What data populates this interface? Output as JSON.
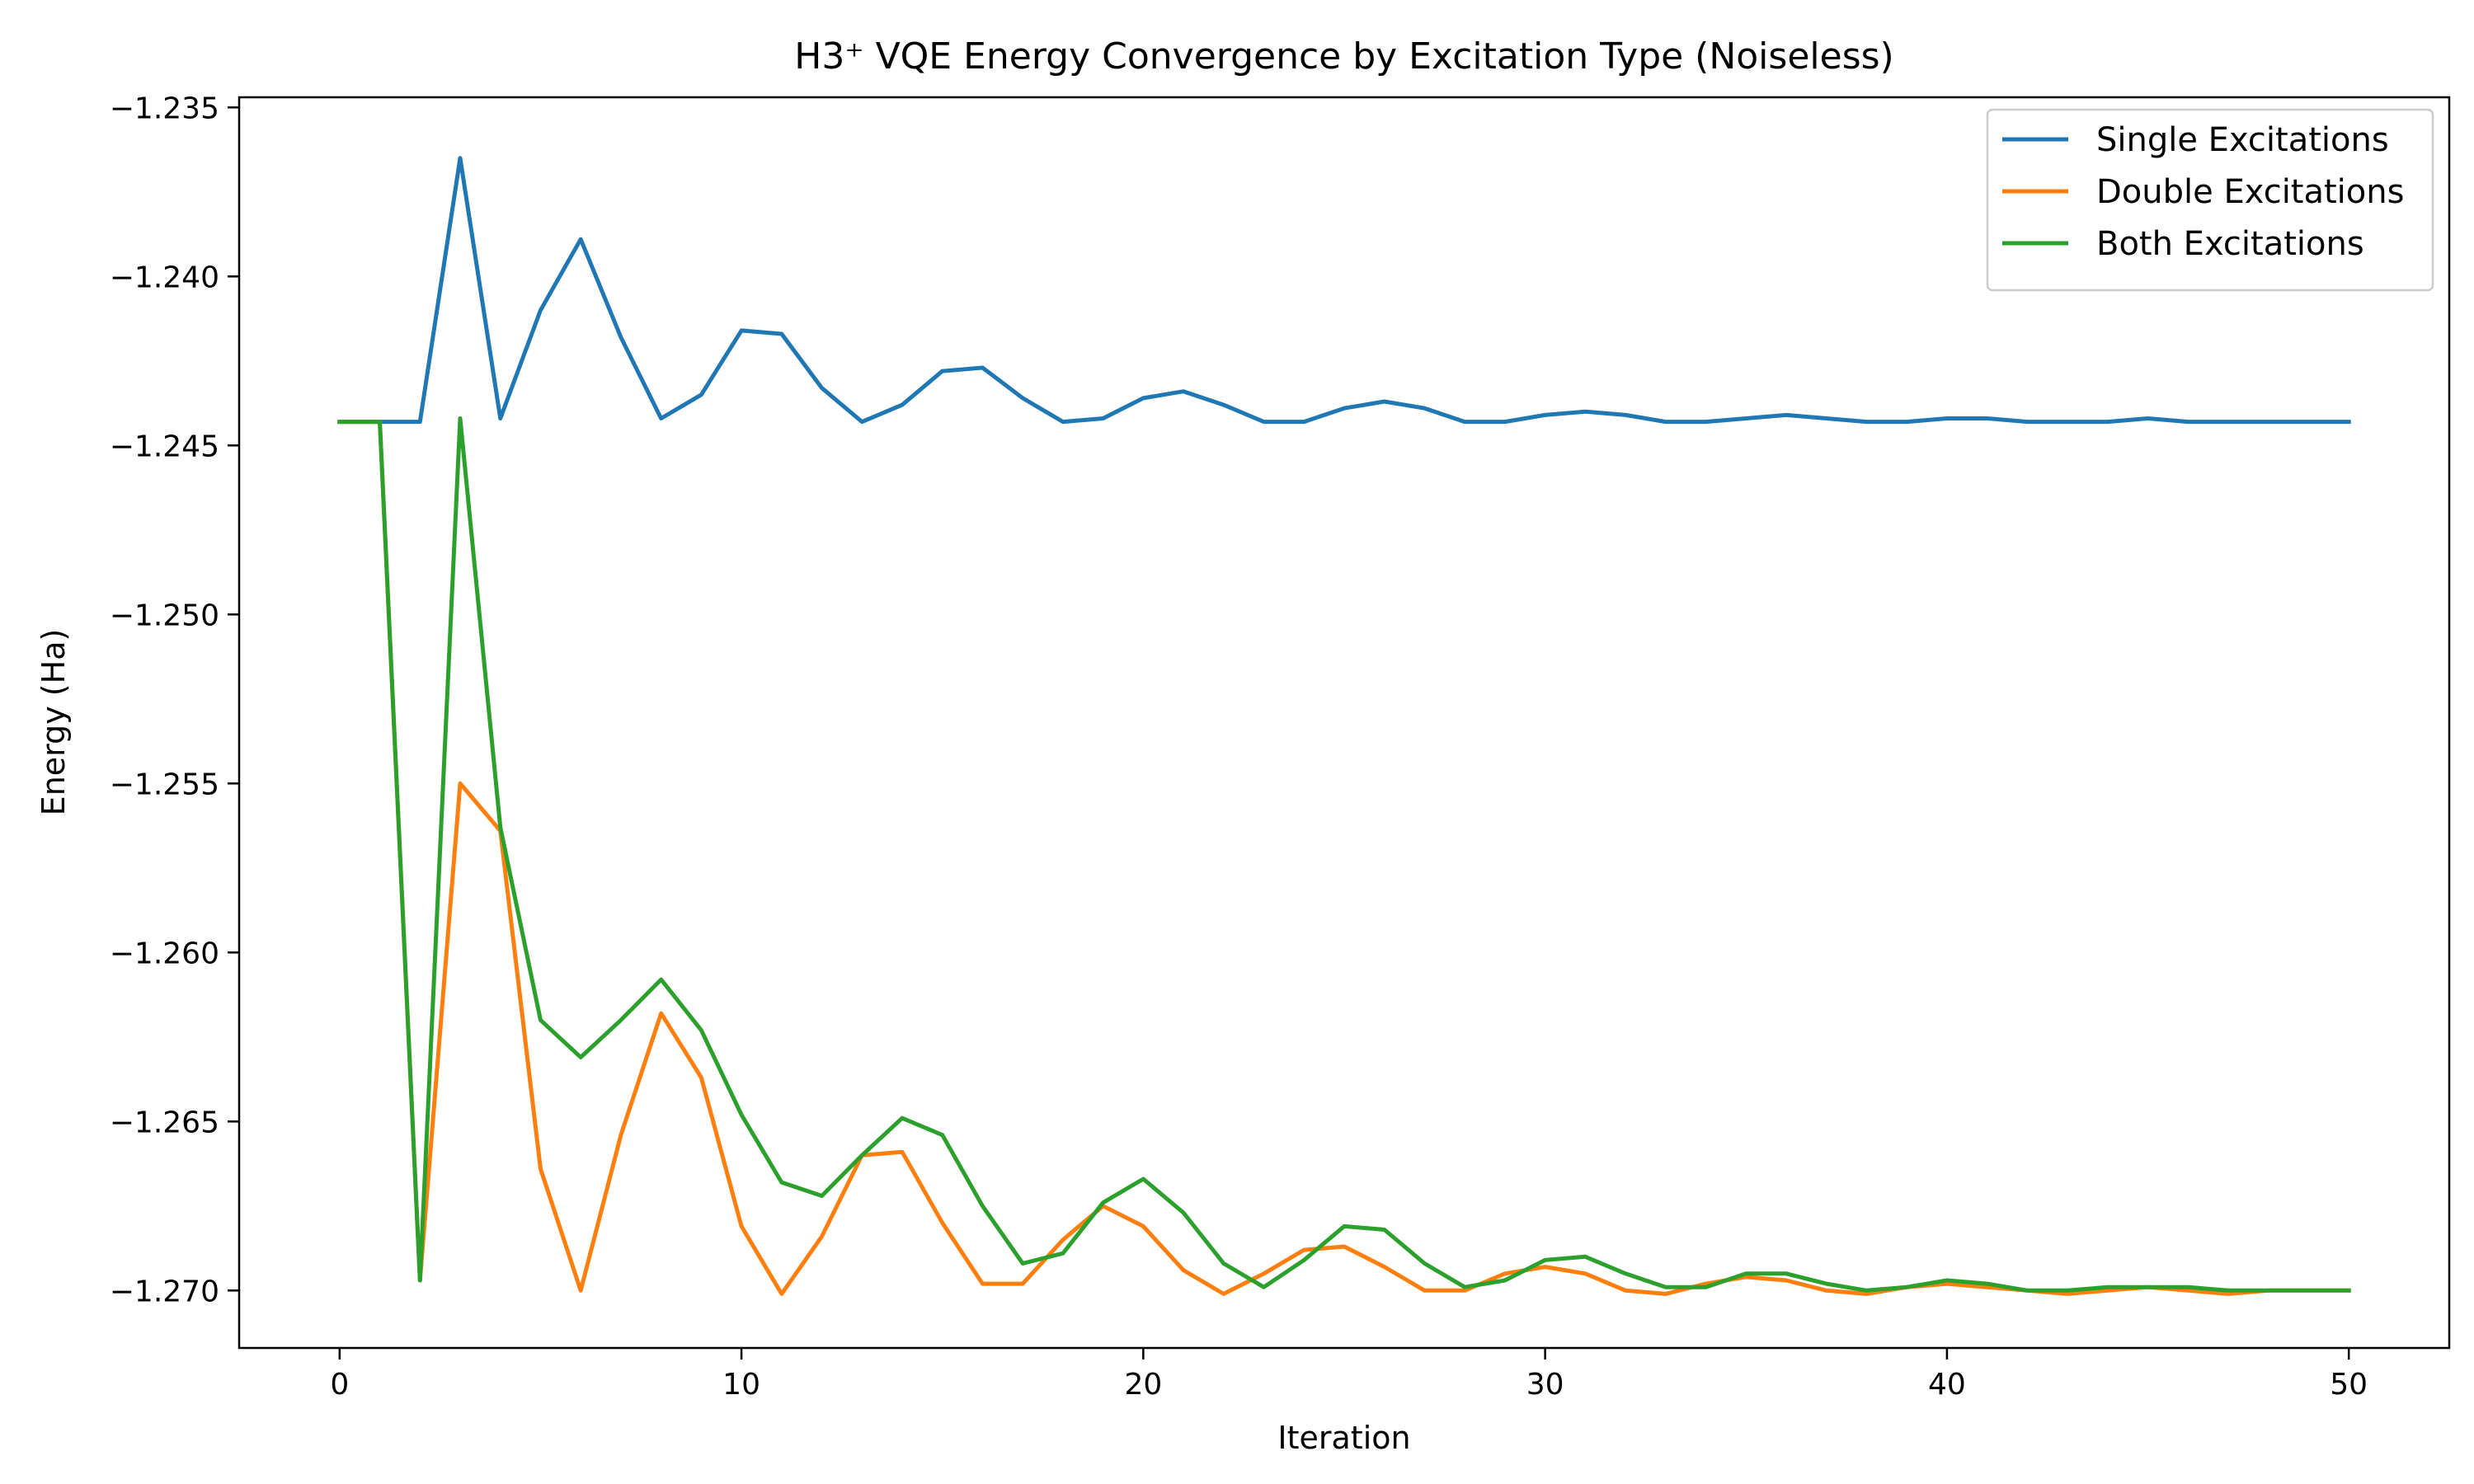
{
  "chart_data": {
    "type": "line",
    "title": "H3⁺ VQE Energy Convergence by Excitation Type (Noiseless)",
    "xlabel": "Iteration",
    "ylabel": "Energy (Ha)",
    "xlim": [
      -2.5,
      52.5
    ],
    "ylim": [
      -1.2717,
      -1.2347
    ],
    "xticks": [
      0,
      10,
      20,
      30,
      40,
      50
    ],
    "xtick_labels": [
      "0",
      "10",
      "20",
      "30",
      "40",
      "50"
    ],
    "yticks": [
      -1.235,
      -1.24,
      -1.245,
      -1.25,
      -1.255,
      -1.26,
      -1.265,
      -1.27
    ],
    "ytick_labels": [
      "−1.235",
      "−1.240",
      "−1.245",
      "−1.250",
      "−1.255",
      "−1.260",
      "−1.265",
      "−1.270"
    ],
    "grid": false,
    "legend_position": "upper right",
    "x": [
      0,
      1,
      2,
      3,
      4,
      5,
      6,
      7,
      8,
      9,
      10,
      11,
      12,
      13,
      14,
      15,
      16,
      17,
      18,
      19,
      20,
      21,
      22,
      23,
      24,
      25,
      26,
      27,
      28,
      29,
      30,
      31,
      32,
      33,
      34,
      35,
      36,
      37,
      38,
      39,
      40,
      41,
      42,
      43,
      44,
      45,
      46,
      47,
      48,
      49,
      50
    ],
    "series": [
      {
        "name": "Single Excitations",
        "color": "#1f77b4",
        "values": [
          -1.2443,
          -1.2443,
          -1.2443,
          -1.2365,
          -1.2442,
          -1.241,
          -1.2389,
          -1.2418,
          -1.2442,
          -1.2435,
          -1.2416,
          -1.2417,
          -1.2433,
          -1.2443,
          -1.2438,
          -1.2428,
          -1.2427,
          -1.2436,
          -1.2443,
          -1.2442,
          -1.2436,
          -1.2434,
          -1.2438,
          -1.2443,
          -1.2443,
          -1.2439,
          -1.2437,
          -1.2439,
          -1.2443,
          -1.2443,
          -1.2441,
          -1.244,
          -1.2441,
          -1.2443,
          -1.2443,
          -1.2442,
          -1.2441,
          -1.2442,
          -1.2443,
          -1.2443,
          -1.2442,
          -1.2442,
          -1.2443,
          -1.2443,
          -1.2443,
          -1.2442,
          -1.2443,
          -1.2443,
          -1.2443,
          -1.2443,
          -1.2443
        ]
      },
      {
        "name": "Double Excitations",
        "color": "#ff7f0e",
        "values": [
          -1.2443,
          -1.2443,
          -1.2697,
          -1.255,
          -1.2564,
          -1.2664,
          -1.27,
          -1.2654,
          -1.2618,
          -1.2637,
          -1.2681,
          -1.2701,
          -1.2684,
          -1.266,
          -1.2659,
          -1.268,
          -1.2698,
          -1.2698,
          -1.2685,
          -1.2675,
          -1.2681,
          -1.2694,
          -1.2701,
          -1.2695,
          -1.2688,
          -1.2687,
          -1.2693,
          -1.27,
          -1.27,
          -1.2695,
          -1.2693,
          -1.2695,
          -1.27,
          -1.2701,
          -1.2698,
          -1.2696,
          -1.2697,
          -1.27,
          -1.2701,
          -1.2699,
          -1.2698,
          -1.2699,
          -1.27,
          -1.2701,
          -1.27,
          -1.2699,
          -1.27,
          -1.2701,
          -1.27,
          -1.27,
          -1.27
        ]
      },
      {
        "name": "Both Excitations",
        "color": "#2ca02c",
        "values": [
          -1.2443,
          -1.2443,
          -1.2697,
          -1.2442,
          -1.2563,
          -1.262,
          -1.2631,
          -1.262,
          -1.2608,
          -1.2623,
          -1.2648,
          -1.2668,
          -1.2672,
          -1.266,
          -1.2649,
          -1.2654,
          -1.2675,
          -1.2692,
          -1.2689,
          -1.2674,
          -1.2667,
          -1.2677,
          -1.2692,
          -1.2699,
          -1.2691,
          -1.2681,
          -1.2682,
          -1.2692,
          -1.2699,
          -1.2697,
          -1.2691,
          -1.269,
          -1.2695,
          -1.2699,
          -1.2699,
          -1.2695,
          -1.2695,
          -1.2698,
          -1.27,
          -1.2699,
          -1.2697,
          -1.2698,
          -1.27,
          -1.27,
          -1.2699,
          -1.2699,
          -1.2699,
          -1.27,
          -1.27,
          -1.27,
          -1.27
        ]
      }
    ]
  }
}
